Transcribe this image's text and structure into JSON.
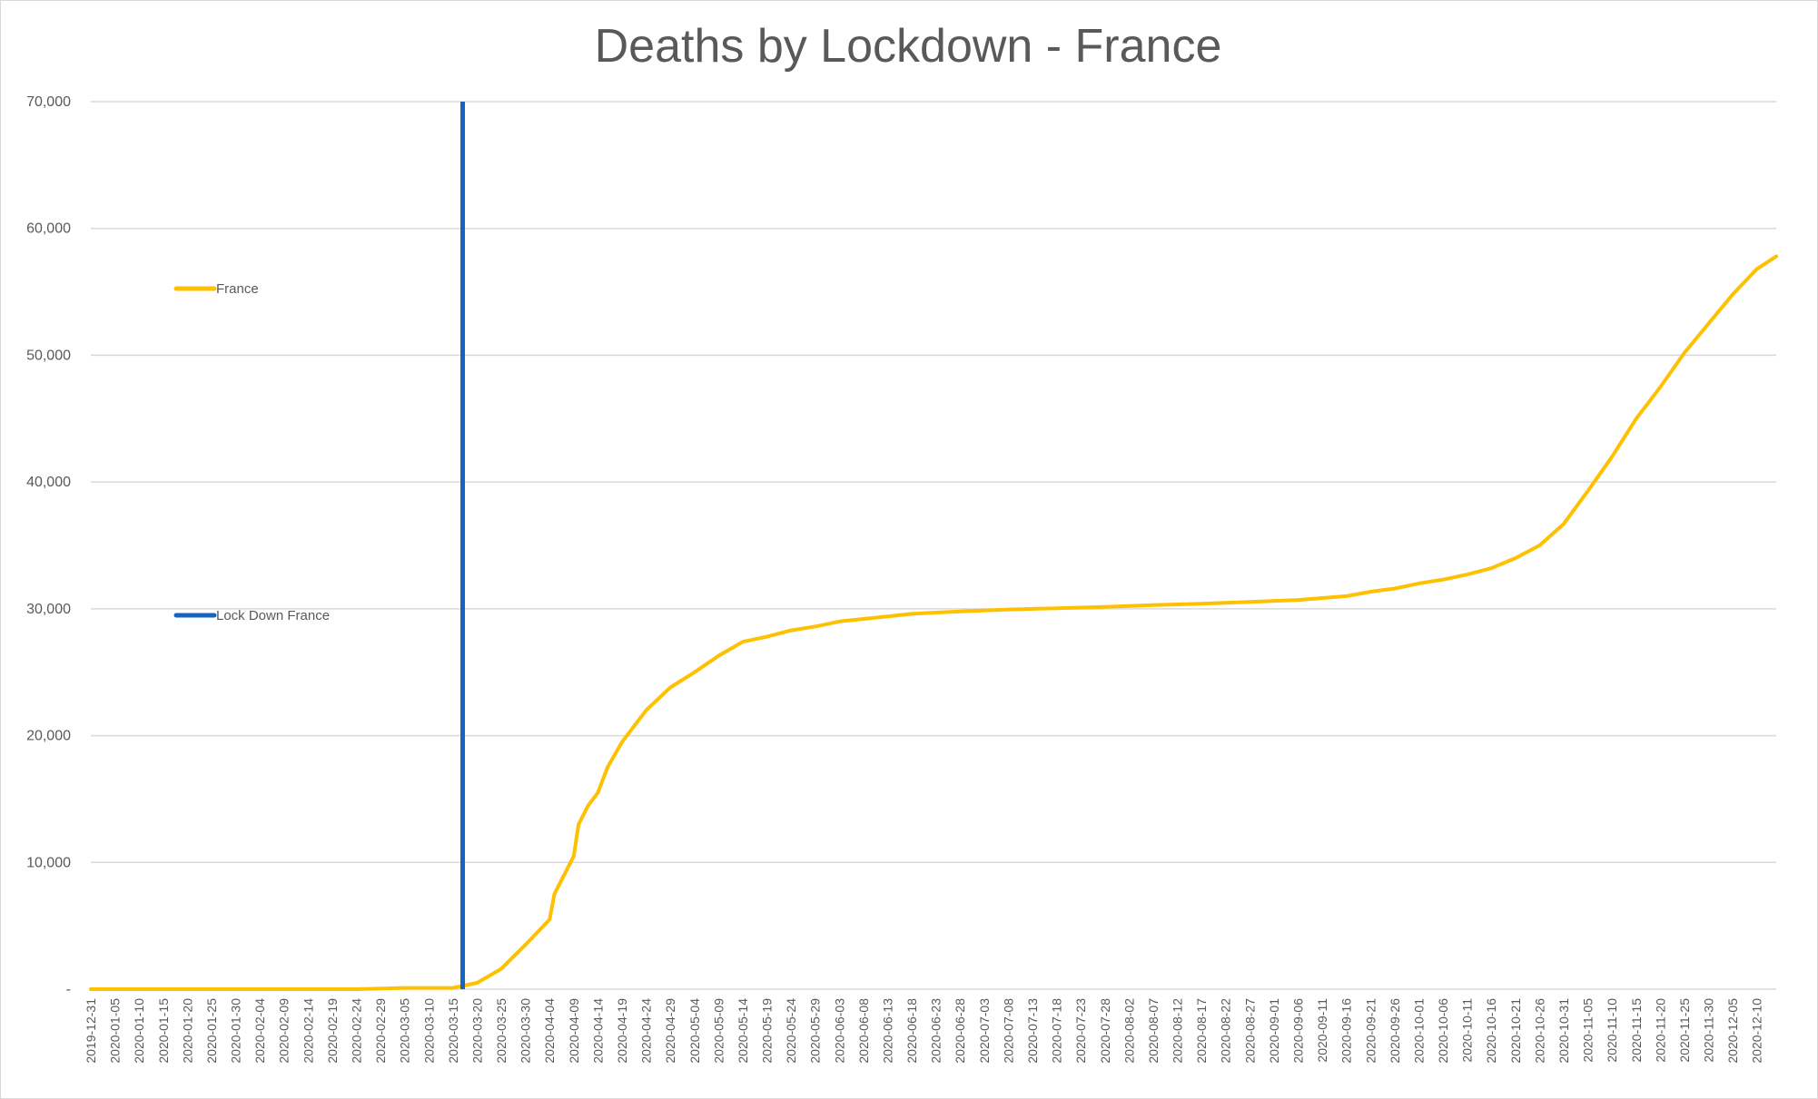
{
  "chart_data": {
    "type": "line",
    "title": "Deaths by Lockdown - France",
    "xlabel": "",
    "ylabel": "",
    "ylim": [
      0,
      70000
    ],
    "yticks": [
      0,
      10000,
      20000,
      30000,
      40000,
      50000,
      60000,
      70000
    ],
    "ytick_labels": [
      "-",
      "10,000",
      "20,000",
      "30,000",
      "40,000",
      "50,000",
      "60,000",
      "70,000"
    ],
    "xlim": [
      "2019-12-31",
      "2020-12-14"
    ],
    "xtick_labels": [
      "2019-12-31",
      "2020-01-05",
      "2020-01-10",
      "2020-01-15",
      "2020-01-20",
      "2020-01-25",
      "2020-01-30",
      "2020-02-04",
      "2020-02-09",
      "2020-02-14",
      "2020-02-19",
      "2020-02-24",
      "2020-02-29",
      "2020-03-05",
      "2020-03-10",
      "2020-03-15",
      "2020-03-20",
      "2020-03-25",
      "2020-03-30",
      "2020-04-04",
      "2020-04-09",
      "2020-04-14",
      "2020-04-19",
      "2020-04-24",
      "2020-04-29",
      "2020-05-04",
      "2020-05-09",
      "2020-05-14",
      "2020-05-19",
      "2020-05-24",
      "2020-05-29",
      "2020-06-03",
      "2020-06-08",
      "2020-06-13",
      "2020-06-18",
      "2020-06-23",
      "2020-06-28",
      "2020-07-03",
      "2020-07-08",
      "2020-07-13",
      "2020-07-18",
      "2020-07-23",
      "2020-07-28",
      "2020-08-02",
      "2020-08-07",
      "2020-08-12",
      "2020-08-17",
      "2020-08-22",
      "2020-08-27",
      "2020-09-01",
      "2020-09-06",
      "2020-09-11",
      "2020-09-16",
      "2020-09-21",
      "2020-09-26",
      "2020-10-01",
      "2020-10-06",
      "2020-10-11",
      "2020-10-16",
      "2020-10-21",
      "2020-10-26",
      "2020-10-31",
      "2020-11-05",
      "2020-11-10",
      "2020-11-15",
      "2020-11-20",
      "2020-11-25",
      "2020-11-30",
      "2020-12-05",
      "2020-12-10"
    ],
    "grid": true,
    "legend_position": "left",
    "series": [
      {
        "name": "France",
        "color": "#ffc000",
        "x": [
          "2019-12-31",
          "2020-02-24",
          "2020-03-05",
          "2020-03-15",
          "2020-03-20",
          "2020-03-25",
          "2020-03-30",
          "2020-04-04",
          "2020-04-05",
          "2020-04-09",
          "2020-04-10",
          "2020-04-12",
          "2020-04-14",
          "2020-04-16",
          "2020-04-19",
          "2020-04-24",
          "2020-04-29",
          "2020-05-04",
          "2020-05-09",
          "2020-05-14",
          "2020-05-19",
          "2020-05-24",
          "2020-05-29",
          "2020-06-03",
          "2020-06-08",
          "2020-06-13",
          "2020-06-18",
          "2020-06-23",
          "2020-06-28",
          "2020-07-08",
          "2020-07-18",
          "2020-07-28",
          "2020-08-07",
          "2020-08-17",
          "2020-08-27",
          "2020-09-06",
          "2020-09-16",
          "2020-09-21",
          "2020-09-26",
          "2020-10-01",
          "2020-10-06",
          "2020-10-11",
          "2020-10-16",
          "2020-10-21",
          "2020-10-26",
          "2020-10-31",
          "2020-11-05",
          "2020-11-10",
          "2020-11-15",
          "2020-11-20",
          "2020-11-25",
          "2020-11-30",
          "2020-12-05",
          "2020-12-10",
          "2020-12-14"
        ],
        "y": [
          0,
          0,
          100,
          100,
          500,
          1600,
          3500,
          5500,
          7500,
          10500,
          13000,
          14500,
          15500,
          17500,
          19500,
          22000,
          23800,
          25000,
          26300,
          27400,
          27800,
          28300,
          28600,
          29000,
          29200,
          29400,
          29600,
          29700,
          29800,
          29950,
          30050,
          30150,
          30300,
          30400,
          30550,
          30700,
          31000,
          31350,
          31600,
          32000,
          32300,
          32700,
          33200,
          34000,
          35000,
          36700,
          39300,
          42000,
          45000,
          47500,
          50200,
          52500,
          54800,
          56800,
          57800
        ]
      },
      {
        "name": "Lock Down France",
        "color": "#1565c0",
        "x": [
          "2020-03-17",
          "2020-03-17"
        ],
        "y": [
          0,
          70000
        ]
      }
    ]
  }
}
